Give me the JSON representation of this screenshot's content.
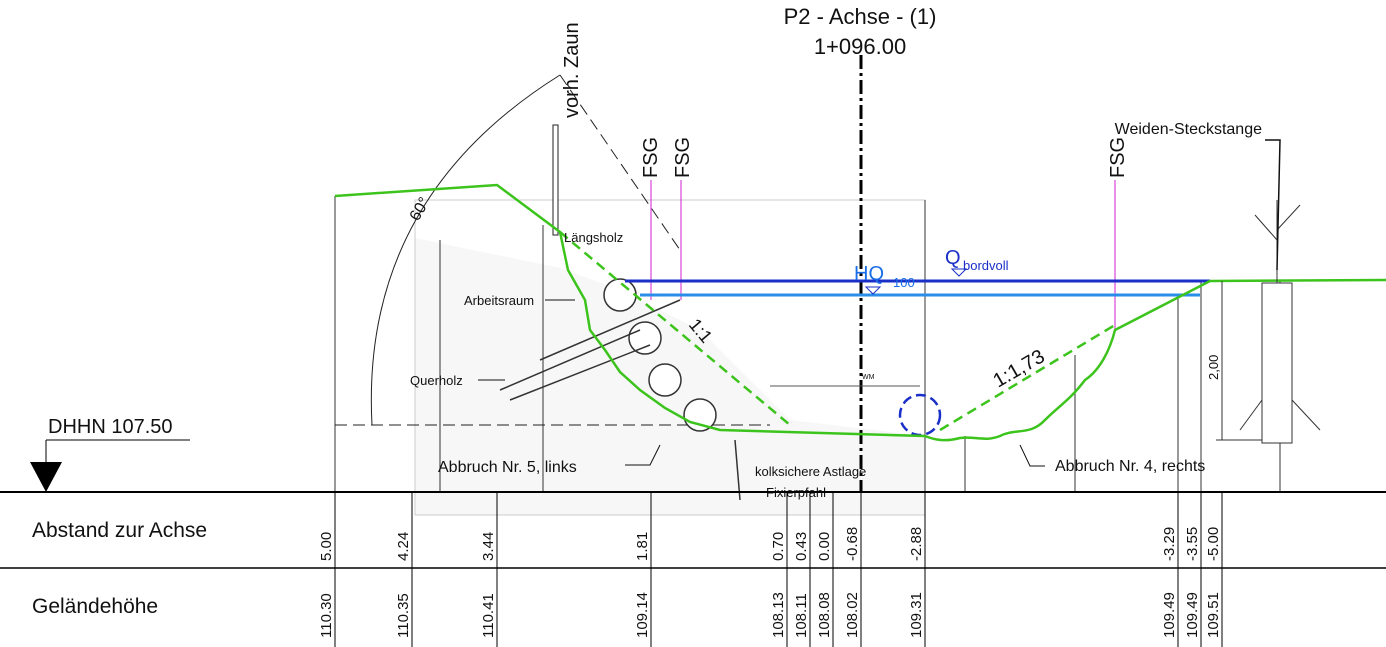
{
  "header": {
    "title": "P2 - Achse - (1)",
    "station": "1+096.00"
  },
  "labels": {
    "fence": "vorh. Zaun",
    "fsg_left_1": "FSG",
    "fsg_left_2": "FSG",
    "fsg_right": "FSG",
    "willow": "Weiden-Steckstange",
    "angle": "60°",
    "laengsholz": "Längsholz",
    "arbeitsraum": "Arbeitsraum",
    "querholz": "Querholz",
    "slope_left": "1:1",
    "hq": "HQ",
    "hq_sub": "100",
    "q": "Q",
    "q_sub": "bordvoll",
    "slope_right": "1:1,73",
    "height": "2,00",
    "wm": "WM",
    "datum": "DHHN 107.50",
    "break_left": "Abbruch Nr. 5, links",
    "astlage": "kolksichere Astlage",
    "pfahl": "Fixierpfahl",
    "break_right": "Abbruch Nr. 4, rechts"
  },
  "table": {
    "row_labels": [
      "Abstand zur Achse",
      "Geländehöhe"
    ],
    "distance": [
      "5.00",
      "4.24",
      "3.44",
      "1.81",
      "0.70",
      "0.43",
      "0.00",
      "-0.68",
      "-2.88",
      "-3.29",
      "-3.55",
      "-5.00"
    ],
    "elevation": [
      "110.30",
      "110.35",
      "110.41",
      "109.14",
      "108.13",
      "108.11",
      "108.08",
      "108.02",
      "109.31",
      "109.49",
      "109.49",
      "109.51"
    ]
  }
}
